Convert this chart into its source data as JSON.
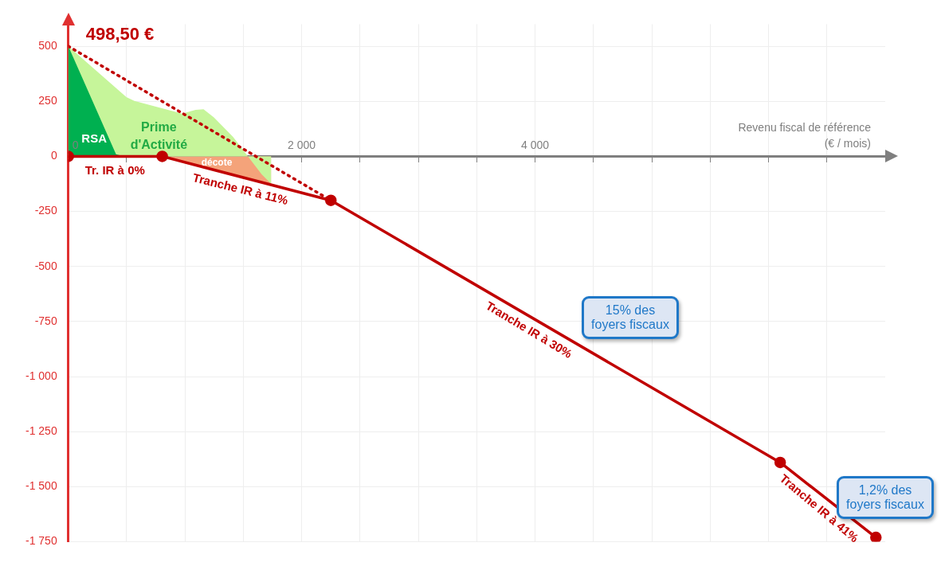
{
  "chart_data": {
    "type": "line",
    "xlabel": "Revenu fiscal de référence\n(€ / mois)",
    "xlim": [
      0,
      7000
    ],
    "ylim": [
      -1750,
      600
    ],
    "xticks": [
      0,
      {
        "value": 500,
        "label": null
      },
      {
        "value": 1000,
        "label": null
      },
      {
        "value": 1500,
        "label": null
      },
      {
        "value": 2000,
        "label": "2 000"
      },
      {
        "value": 2500,
        "label": null
      },
      {
        "value": 3000,
        "label": null
      },
      {
        "value": 3500,
        "label": null
      },
      {
        "value": 4000,
        "label": "4 000"
      },
      {
        "value": 4500,
        "label": null
      },
      {
        "value": 5000,
        "label": null
      },
      {
        "value": 5500,
        "label": null
      },
      {
        "value": 6000,
        "label": null
      },
      {
        "value": 6500,
        "label": null
      }
    ],
    "yticks": [
      {
        "value": -1750,
        "label": "-1 750"
      },
      {
        "value": -1500,
        "label": "-1 500"
      },
      {
        "value": -1250,
        "label": "-1 250"
      },
      {
        "value": -1000,
        "label": "-1 000"
      },
      -750,
      -500,
      -250,
      0,
      250,
      500
    ],
    "grid": true,
    "legend": false,
    "series": [
      {
        "name": "décote",
        "type": "area",
        "color": "#f4a37a",
        "x": [
          805,
          1739
        ],
        "values": [
          0,
          -125
        ]
      },
      {
        "name": "Prime d'Activité",
        "type": "area",
        "color": "#c6f59a",
        "x": [
          0,
          498,
          566,
          975,
          1091,
          1159,
          1248,
          1412,
          1657,
          1739
        ],
        "values": [
          500,
          269,
          252,
          194,
          211,
          214,
          177,
          88,
          -82,
          -125
        ]
      },
      {
        "name": "RSA",
        "type": "area",
        "color": "#00b050",
        "x": [
          0,
          409,
          477
        ],
        "values": [
          500,
          10,
          0
        ]
      },
      {
        "color": "#c00000",
        "line_style": "dotted",
        "x": [
          0,
          2250
        ],
        "values": [
          500,
          -200
        ]
      },
      {
        "color": "#c00000",
        "line_style": "solid",
        "marker": "circle",
        "x": [
          0,
          805,
          2250,
          6100,
          6920
        ],
        "values": [
          0,
          0,
          -200,
          -1390,
          -1730
        ]
      }
    ],
    "annotations": [
      {
        "text": "498,50 €",
        "x": 0,
        "y": 500
      },
      {
        "text": "Tr. IR à 0%",
        "x": 400,
        "y": 0
      },
      {
        "text": "Tranche IR à 11%",
        "x": 1500,
        "y": -96
      },
      {
        "text": "Tranche IR à 30%",
        "x": 4000,
        "y": -741
      },
      {
        "text": "Tranche IR à 41%",
        "x": 6500,
        "y": -1556
      },
      "15% des foyers fiscaux",
      "1,2% des foyers fiscaux"
    ]
  }
}
